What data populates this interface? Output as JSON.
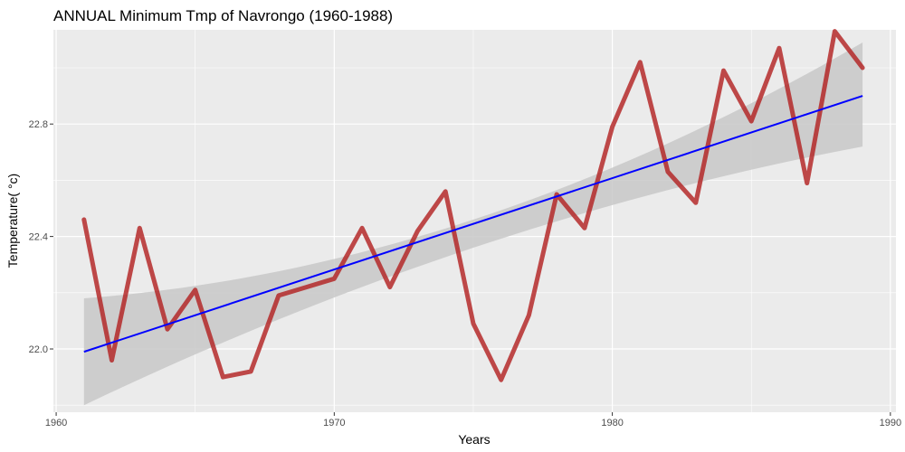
{
  "chart_data": {
    "type": "line",
    "title": "ANNUAL Minimum Tmp of Navrongo (1960-1988)",
    "xlabel": "Years",
    "ylabel": "Temperature( °c)",
    "xlim": [
      1959.9,
      1990.2
    ],
    "ylim": [
      21.775,
      23.135
    ],
    "x_ticks": [
      1960,
      1970,
      1980,
      1990
    ],
    "y_ticks": [
      22.0,
      22.4,
      22.8
    ],
    "y_tick_labels": [
      "22.0",
      "22.4",
      "22.8"
    ],
    "grid": true,
    "series": [
      {
        "x": [
          1961,
          1962,
          1963,
          1964,
          1965,
          1966,
          1967,
          1968,
          1969,
          1970,
          1971,
          1972,
          1973,
          1974,
          1975,
          1976,
          1977,
          1978,
          1979,
          1980,
          1981,
          1982,
          1983,
          1984,
          1985,
          1986,
          1987,
          1988,
          1989
        ],
        "values": [
          22.46,
          21.96,
          22.43,
          22.07,
          22.21,
          21.9,
          21.92,
          22.19,
          22.22,
          22.25,
          22.43,
          22.22,
          22.42,
          22.56,
          22.09,
          21.89,
          22.12,
          22.55,
          22.43,
          22.79,
          23.02,
          22.63,
          22.52,
          22.99,
          22.81,
          23.07,
          22.59,
          23.13,
          23.0
        ],
        "color": "#b22222"
      }
    ],
    "trend_line": {
      "x": [
        1961,
        1989
      ],
      "values": [
        21.99,
        22.9
      ],
      "color": "#0000ff"
    },
    "confidence_band": {
      "x": [
        1961,
        1975,
        1989
      ],
      "lower": [
        21.8,
        22.36,
        22.72
      ],
      "upper": [
        22.18,
        22.46,
        23.09
      ],
      "color": "#c8c8c8"
    },
    "panel_color": "#ebebeb",
    "grid_color": "#ffffff"
  }
}
